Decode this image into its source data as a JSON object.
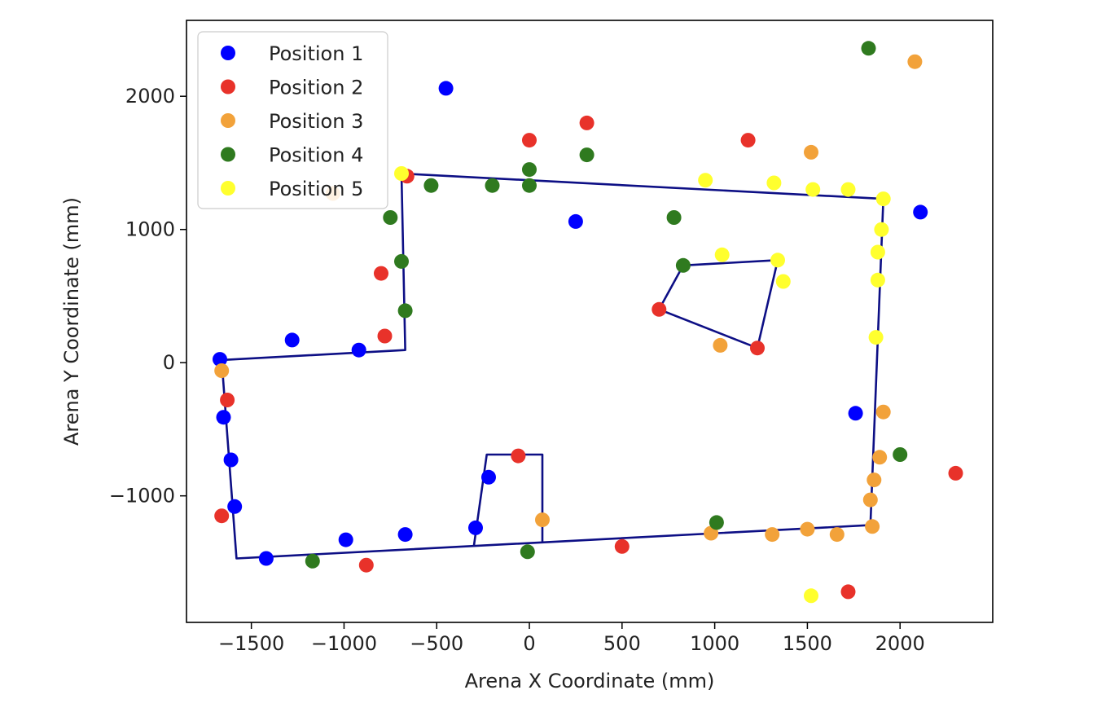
{
  "chart_data": {
    "type": "scatter",
    "title": "",
    "xlabel": "Arena X Coordinate (mm)",
    "ylabel": "Arena Y Coordinate (mm)",
    "xlim": [
      -1850,
      2500
    ],
    "ylim": [
      -1950,
      2570
    ],
    "xticks": [
      -1500,
      -1000,
      -500,
      0,
      500,
      1000,
      1500,
      2000
    ],
    "yticks": [
      -1000,
      0,
      1000,
      2000
    ],
    "xtick_labels": [
      "−1500",
      "−1000",
      "−500",
      "0",
      "500",
      "1000",
      "1500",
      "2000"
    ],
    "ytick_labels": [
      "−1000",
      "0",
      "1000",
      "2000"
    ],
    "grid": false,
    "legend_position": "top-left",
    "outline_color": "#0d0f85",
    "outlines": [
      [
        [
          -1660,
          20
        ],
        [
          -670,
          95
        ],
        [
          -690,
          1420
        ],
        [
          1910,
          1230
        ],
        [
          1840,
          -1220
        ],
        [
          -1580,
          -1470
        ],
        [
          -1660,
          20
        ]
      ],
      [
        [
          700,
          400
        ],
        [
          830,
          730
        ],
        [
          1340,
          770
        ],
        [
          1230,
          110
        ],
        [
          700,
          400
        ]
      ],
      [
        [
          -300,
          -1380
        ],
        [
          -230,
          -690
        ],
        [
          70,
          -690
        ],
        [
          70,
          -1350
        ]
      ]
    ],
    "series": [
      {
        "name": "Position 1",
        "color": "#0000ff",
        "points": [
          [
            -450,
            2060
          ],
          [
            250,
            1060
          ],
          [
            2110,
            1130
          ],
          [
            -1280,
            170
          ],
          [
            -920,
            95
          ],
          [
            -1670,
            25
          ],
          [
            -1650,
            -410
          ],
          [
            -1610,
            -730
          ],
          [
            -1590,
            -1080
          ],
          [
            -1420,
            -1470
          ],
          [
            -990,
            -1330
          ],
          [
            -670,
            -1290
          ],
          [
            -290,
            -1240
          ],
          [
            -220,
            -860
          ],
          [
            1760,
            -380
          ]
        ]
      },
      {
        "name": "Position 2",
        "color": "#e8322a",
        "points": [
          [
            0,
            1670
          ],
          [
            310,
            1800
          ],
          [
            1180,
            1670
          ],
          [
            -660,
            1400
          ],
          [
            -800,
            670
          ],
          [
            -780,
            200
          ],
          [
            700,
            400
          ],
          [
            1230,
            110
          ],
          [
            -1630,
            -280
          ],
          [
            -1660,
            -1150
          ],
          [
            -60,
            -700
          ],
          [
            500,
            -1380
          ],
          [
            -880,
            -1520
          ],
          [
            1720,
            -1720
          ],
          [
            2300,
            -830
          ]
        ]
      },
      {
        "name": "Position 3",
        "color": "#f2a23a",
        "points": [
          [
            2080,
            2260
          ],
          [
            1520,
            1580
          ],
          [
            -1060,
            1270
          ],
          [
            1030,
            130
          ],
          [
            -1660,
            -60
          ],
          [
            1910,
            -370
          ],
          [
            1890,
            -710
          ],
          [
            1860,
            -880
          ],
          [
            1840,
            -1030
          ],
          [
            1850,
            -1230
          ],
          [
            70,
            -1180
          ],
          [
            980,
            -1280
          ],
          [
            1310,
            -1290
          ],
          [
            1500,
            -1250
          ],
          [
            1660,
            -1290
          ]
        ]
      },
      {
        "name": "Position 4",
        "color": "#2f7a1f",
        "points": [
          [
            1830,
            2360
          ],
          [
            0,
            1450
          ],
          [
            310,
            1560
          ],
          [
            -530,
            1330
          ],
          [
            -200,
            1330
          ],
          [
            0,
            1330
          ],
          [
            -750,
            1090
          ],
          [
            780,
            1090
          ],
          [
            -690,
            760
          ],
          [
            830,
            730
          ],
          [
            -670,
            390
          ],
          [
            2000,
            -690
          ],
          [
            1010,
            -1200
          ],
          [
            -10,
            -1420
          ],
          [
            -1170,
            -1490
          ]
        ]
      },
      {
        "name": "Position 5",
        "color": "#ffff2e",
        "points": [
          [
            -690,
            1420
          ],
          [
            950,
            1370
          ],
          [
            1320,
            1350
          ],
          [
            1530,
            1300
          ],
          [
            1720,
            1300
          ],
          [
            1910,
            1230
          ],
          [
            1900,
            1000
          ],
          [
            1880,
            830
          ],
          [
            1880,
            620
          ],
          [
            1040,
            810
          ],
          [
            1340,
            770
          ],
          [
            1370,
            610
          ],
          [
            1870,
            190
          ],
          [
            1520,
            -1750
          ]
        ]
      }
    ]
  }
}
